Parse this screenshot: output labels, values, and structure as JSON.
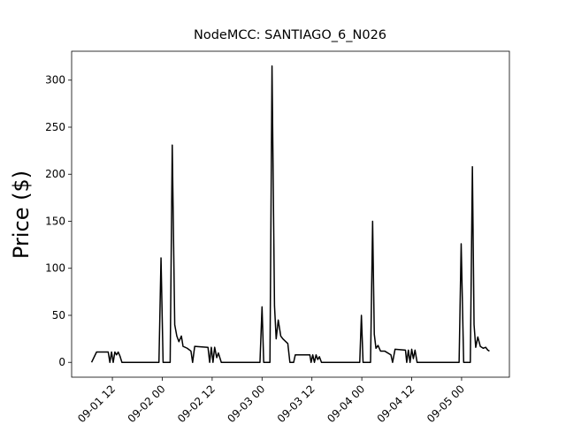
{
  "chart_data": {
    "type": "line",
    "title": "NodeMCC: SANTIAGO_6_N026",
    "y_label": "Price ($)",
    "color": "#000000",
    "x": [
      7,
      8.2,
      11,
      11.4,
      11.8,
      12.2,
      12.6,
      13,
      13.4,
      13.8,
      14.3,
      23.2,
      23.7,
      24.2,
      25.9,
      26.4,
      27,
      27.5,
      28,
      28.6,
      29,
      30,
      30.9,
      31.3,
      31.8,
      35,
      35.4,
      35.8,
      36.2,
      36.6,
      37.1,
      37.5,
      38.2,
      47.5,
      48,
      48.4,
      49.9,
      50.4,
      51,
      51.4,
      51.9,
      52.5,
      53,
      54.2,
      54.7,
      55.6,
      56,
      59.5,
      59.8,
      60.2,
      60.6,
      61,
      61.4,
      61.8,
      62.3,
      71.5,
      71.9,
      72.3,
      74.1,
      74.6,
      75,
      75.4,
      75.9,
      76.5,
      77.5,
      79,
      79.4,
      80,
      82.5,
      82.8,
      83.2,
      83.6,
      84,
      84.4,
      84.8,
      85.3,
      95.4,
      95.9,
      96.5,
      98.1,
      98.6,
      99,
      99.4,
      99.9,
      100.5,
      101.2,
      101.8,
      102.3,
      102.7
    ],
    "values": [
      0,
      11,
      11,
      0,
      11,
      0,
      11,
      8,
      11,
      7,
      0,
      0,
      111,
      0,
      0,
      231,
      40,
      28,
      22,
      28,
      17,
      15,
      12,
      0,
      17,
      16,
      0,
      16,
      0,
      16,
      5,
      10,
      0,
      0,
      59,
      0,
      0,
      315,
      60,
      25,
      45,
      28,
      25,
      20,
      0,
      0,
      8,
      8,
      0,
      8,
      0,
      8,
      3,
      6,
      0,
      0,
      50,
      0,
      0,
      150,
      30,
      15,
      18,
      12,
      12,
      8,
      0,
      14,
      13,
      0,
      13,
      0,
      14,
      4,
      13,
      0,
      0,
      126,
      0,
      0,
      208,
      40,
      16,
      27,
      17,
      15,
      16,
      13,
      12
    ],
    "xlim": [
      2.2,
      107.5
    ],
    "xticks": [
      {
        "value": 12,
        "label": "09-01 12"
      },
      {
        "value": 24,
        "label": "09-02 00"
      },
      {
        "value": 36,
        "label": "09-02 12"
      },
      {
        "value": 48,
        "label": "09-03 00"
      },
      {
        "value": 60,
        "label": "09-03 12"
      },
      {
        "value": 72,
        "label": "09-04 00"
      },
      {
        "value": 84,
        "label": "09-04 12"
      },
      {
        "value": 96,
        "label": "09-05 00"
      }
    ],
    "ylim": [
      -15.75,
      330.75
    ],
    "yticks": [
      0,
      50,
      100,
      150,
      200,
      250,
      300
    ]
  }
}
